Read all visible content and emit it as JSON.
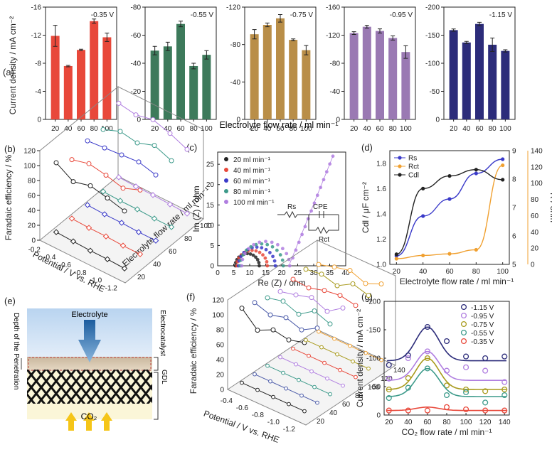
{
  "figure_title": "Electrolyte flow rate / ml min⁻¹",
  "panel_labels": [
    "(a)",
    "(b)",
    "(c)",
    "(d)",
    "(e)",
    "(f)",
    "(g)"
  ],
  "colors": {
    "red": "#e8483a",
    "green": "#3d7a5b",
    "gold": "#b98e48",
    "purple": "#9a79b3",
    "navy": "#2c2c7a",
    "blue": "#3a3ac9",
    "orange": "#f0a030",
    "black": "#222222",
    "violet": "#b07ee0",
    "slate": "#4a5aa8",
    "olive": "#a89a1c",
    "teal": "#3c9a8a"
  },
  "chart_data": [
    {
      "id": "a",
      "type": "bar",
      "ylabel": "Current density / mA cm⁻²",
      "categories": [
        "20",
        "40",
        "60",
        "80",
        "100"
      ],
      "subplots": [
        {
          "label": "-0.35 V",
          "values": [
            -11.9,
            -7.6,
            -9.9,
            -14.0,
            -11.7
          ],
          "errors": [
            1.5,
            0.1,
            0.1,
            0.3,
            0.6
          ],
          "yticks": [
            "-16",
            "-12",
            "-8",
            "-4",
            "0"
          ],
          "ylim": [
            0,
            -16
          ]
        },
        {
          "label": "-0.55 V",
          "values": [
            -49,
            -52,
            -68,
            -38,
            -46
          ],
          "errors": [
            3,
            3,
            2,
            2,
            3
          ],
          "yticks": [
            "-80",
            "-60",
            "-40",
            "-20",
            "0"
          ],
          "ylim": [
            0,
            -80
          ]
        },
        {
          "label": "-0.75 V",
          "values": [
            -91,
            -101,
            -108,
            -85,
            -74
          ],
          "errors": [
            5,
            2,
            4,
            1,
            5
          ],
          "yticks": [
            "-120",
            "-80",
            "-40",
            "0"
          ],
          "ylim": [
            0,
            -120
          ]
        },
        {
          "label": "-0.95 V",
          "values": [
            -123,
            -132,
            -126,
            -116,
            -96
          ],
          "errors": [
            2,
            2,
            3,
            3,
            9
          ],
          "yticks": [
            "-160",
            "-120",
            "-80",
            "-40",
            "0"
          ],
          "ylim": [
            0,
            -160
          ]
        },
        {
          "label": "-1.15 V",
          "values": [
            -159,
            -137,
            -170,
            -133,
            -122
          ],
          "errors": [
            2,
            2,
            3,
            12,
            2
          ],
          "yticks": [
            "-200",
            "-150",
            "-100",
            "-50",
            "0"
          ],
          "ylim": [
            0,
            -200
          ]
        }
      ]
    },
    {
      "id": "b",
      "type": "scatter3d",
      "zlabel": "Faradaic efficiency / %",
      "xlabel": "Potential / V vs. RHE",
      "ylabel": "Electrolyte flow rate / ml min⁻¹",
      "zticks": [
        "0",
        "20",
        "40",
        "60",
        "80",
        "100",
        "120"
      ],
      "xticks": [
        "-0.2",
        "-0.4",
        "-0.6",
        "-0.8",
        "-1.0",
        "-1.2"
      ],
      "yticks": [
        "20",
        "40",
        "60",
        "80",
        "100"
      ],
      "potentials": [
        -0.35,
        -0.55,
        -0.75,
        -0.95,
        -1.15
      ],
      "series": [
        {
          "flow": 20,
          "fe_top": [
            101,
            87,
            93,
            88,
            82
          ],
          "fe_bottom": [
            8,
            7,
            6,
            6,
            5
          ]
        },
        {
          "flow": 40,
          "fe_top": [
            88,
            94,
            90,
            84,
            93
          ],
          "fe_bottom": [
            9,
            8,
            8,
            7,
            7
          ]
        },
        {
          "flow": 60,
          "fe_top": [
            96,
            98,
            100,
            102,
            96
          ],
          "fe_bottom": [
            10,
            9,
            9,
            8,
            8
          ]
        },
        {
          "flow": 80,
          "fe_top": [
            94,
            103,
            99,
            107,
            98
          ],
          "fe_bottom": [
            11,
            10,
            10,
            9,
            9
          ]
        },
        {
          "flow": 100,
          "fe_top": [
            112,
            108,
            113,
            106,
            96
          ],
          "fe_bottom": [
            13,
            12,
            12,
            11,
            10
          ]
        }
      ]
    },
    {
      "id": "c",
      "type": "scatter",
      "xlabel": "Re (Z) / ohm",
      "ylabel": "Im (Z) / ohm",
      "xlim": [
        0,
        40
      ],
      "ylim": [
        0,
        28
      ],
      "xticks": [
        "0",
        "5",
        "10",
        "15",
        "20",
        "25",
        "30",
        "35",
        "40"
      ],
      "yticks": [
        "0",
        "5",
        "10",
        "15",
        "20",
        "25"
      ],
      "legend": [
        "20   ml min⁻¹",
        "40   ml min⁻¹",
        "60   ml min⁻¹",
        "80   ml min⁻¹",
        "100 ml min⁻¹"
      ],
      "circuit_labels": [
        "Rs",
        "CPE",
        "Rct"
      ],
      "series": [
        {
          "name": "20",
          "rs": 5.5,
          "rct": 7.5
        },
        {
          "name": "40",
          "rs": 6.0,
          "rct": 9.5
        },
        {
          "name": "60",
          "rs": 6.5,
          "rct": 11.5
        },
        {
          "name": "80",
          "rs": 7.0,
          "rct": 13.5
        },
        {
          "name": "100",
          "rs": 7.5,
          "rct": 15.0,
          "tail_to": [
            36,
            27
          ]
        }
      ]
    },
    {
      "id": "d",
      "type": "line",
      "xlabel": "Electrolyte flow rate / ml min⁻¹",
      "ylabel_left": "Cdl / μF cm⁻²",
      "ylabel_right": "R / ohm",
      "x": [
        20,
        40,
        60,
        80,
        100
      ],
      "xticks": [
        "20",
        "40",
        "60",
        "80",
        "100"
      ],
      "yticks_left": [
        "1.0",
        "1.2",
        "1.4",
        "1.6",
        "1.8"
      ],
      "yticks_blue": [
        "5",
        "6",
        "7",
        "8",
        "9"
      ],
      "yticks_orange": [
        "0",
        "20",
        "40",
        "60",
        "80",
        "100",
        "120",
        "140"
      ],
      "legend": [
        "Rs",
        "Rct",
        "Cdl"
      ],
      "series": [
        {
          "name": "Rs",
          "axis": "blue",
          "ylim": [
            5,
            9
          ],
          "values": [
            5.3,
            6.7,
            7.3,
            8.2,
            8.7
          ]
        },
        {
          "name": "Rct",
          "axis": "orange",
          "ylim": [
            0,
            140
          ],
          "values": [
            7,
            11,
            13,
            18,
            122
          ]
        },
        {
          "name": "Cdl",
          "axis": "left",
          "ylim": [
            1.0,
            1.9
          ],
          "values": [
            1.08,
            1.6,
            1.7,
            1.75,
            1.67
          ]
        }
      ]
    },
    {
      "id": "f",
      "type": "scatter3d",
      "zlabel": "Faradaic efficiency / %",
      "xlabel": "Potential / V vs. RHE",
      "zticks": [
        "0",
        "20",
        "40",
        "60",
        "80",
        "100",
        "120"
      ],
      "xticks": [
        "-0.4",
        "-0.6",
        "-0.8",
        "-1.0",
        "-1.2"
      ],
      "yticks": [
        "20",
        "40",
        "60",
        "80",
        "100",
        "120",
        "140"
      ],
      "series": [
        {
          "flow": 20,
          "fe_top": [
            108,
            88,
            98,
            94,
            100
          ]
        },
        {
          "flow": 40,
          "fe_top": [
            104,
            97,
            103,
            96,
            108
          ]
        },
        {
          "flow": 60,
          "fe_top": [
            99,
            104,
            96,
            110,
            102
          ]
        },
        {
          "flow": 80,
          "fe_top": [
            96,
            101,
            107,
            98,
            112
          ]
        },
        {
          "flow": 100,
          "fe_top": [
            101,
            99,
            105,
            108,
            104
          ]
        },
        {
          "flow": 120,
          "fe_top": [
            103,
            106,
            100,
            112,
            106
          ]
        },
        {
          "flow": 140,
          "fe_top": [
            98,
            104,
            109,
            101,
            110
          ]
        }
      ]
    },
    {
      "id": "g",
      "type": "scatter",
      "xlabel": "CO₂ flow rate / ml min⁻¹",
      "ylabel": "Current density / mA cm⁻²",
      "x": [
        20,
        40,
        60,
        80,
        100,
        120,
        140
      ],
      "xlim": [
        15,
        145
      ],
      "ylim": [
        0,
        -200
      ],
      "xticks": [
        "20",
        "40",
        "60",
        "80",
        "100",
        "120",
        "140"
      ],
      "yticks": [
        "-200",
        "-150",
        "-100",
        "-50",
        "0"
      ],
      "series": [
        {
          "name": "-1.15 V",
          "values": [
            -88,
            -105,
            -155,
            -130,
            -103,
            -100,
            -103
          ]
        },
        {
          "name": "-0.95 V",
          "values": [
            -64,
            -100,
            -112,
            -78,
            -84,
            -78,
            -58
          ]
        },
        {
          "name": "-0.75 V",
          "values": [
            -45,
            -65,
            -100,
            -52,
            -45,
            -42,
            -45
          ]
        },
        {
          "name": "-0.55 V",
          "values": [
            -30,
            -48,
            -82,
            -35,
            -40,
            -22,
            -35
          ]
        },
        {
          "name": "-0.35 V",
          "values": [
            -8,
            -8,
            -8,
            -14,
            -10,
            -8,
            -8
          ]
        }
      ]
    }
  ],
  "schematic": {
    "electrolyte": "Electrolyte",
    "co2": "CO₂",
    "depth": "Depth of the Penetration",
    "electrocatalyst": "Electrocatalyst",
    "gdl": "GDL"
  }
}
